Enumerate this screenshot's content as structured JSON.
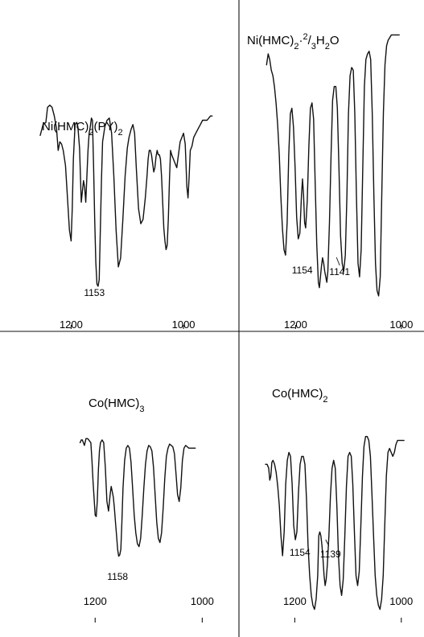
{
  "chart_data": [
    {
      "type": "line",
      "title": "Ni(HMC)2(PY)2",
      "title_parts": [
        "Ni(HMC)",
        "2",
        "(PY)",
        "2"
      ],
      "xlabel": "",
      "ylabel": "",
      "x_ticks": [
        {
          "value": 1200,
          "label": "1200"
        },
        {
          "value": 1000,
          "label": "1000"
        }
      ],
      "xlim": [
        1255,
        950
      ],
      "ylim": [
        0,
        100
      ],
      "grid": false,
      "series": [
        {
          "x": [
            1255,
            1250,
            1245,
            1242,
            1238,
            1234,
            1230,
            1226,
            1223,
            1220,
            1217,
            1214,
            1210,
            1206,
            1203,
            1200,
            1198,
            1196,
            1193,
            1190,
            1188,
            1185,
            1182,
            1180,
            1178,
            1176,
            1174,
            1172,
            1170,
            1168,
            1166,
            1164,
            1162,
            1160,
            1158,
            1156,
            1154,
            1152,
            1150,
            1148,
            1146,
            1144,
            1140,
            1136,
            1132,
            1128,
            1124,
            1120,
            1116,
            1112,
            1108,
            1104,
            1100,
            1097,
            1095,
            1093,
            1090,
            1087,
            1084,
            1080,
            1076,
            1072,
            1068,
            1065,
            1063,
            1061,
            1059,
            1057,
            1055,
            1053,
            1051,
            1049,
            1047,
            1045,
            1043,
            1041,
            1039,
            1037,
            1035,
            1033,
            1031,
            1029,
            1027,
            1025,
            1023,
            1021,
            1018,
            1015,
            1012,
            1009,
            1006,
            1003,
            1000,
            997,
            994,
            992,
            990,
            988,
            985,
            982,
            978,
            974,
            970,
            966,
            962,
            958,
            955,
            952,
            949
          ],
          "y": [
            79,
            84,
            85,
            92,
            93,
            92,
            88,
            82,
            72,
            76,
            75,
            72,
            65,
            48,
            35,
            30,
            45,
            68,
            84,
            85,
            83,
            73,
            48,
            53,
            58,
            55,
            48,
            60,
            72,
            80,
            83,
            87,
            86,
            65,
            40,
            20,
            10,
            9,
            12,
            35,
            58,
            76,
            83,
            86,
            87,
            80,
            60,
            35,
            18,
            22,
            40,
            60,
            73,
            78,
            80,
            82,
            84,
            80,
            64,
            45,
            38,
            40,
            50,
            60,
            68,
            72,
            72,
            70,
            66,
            62,
            64,
            69,
            72,
            70,
            70,
            68,
            60,
            48,
            36,
            30,
            26,
            28,
            40,
            58,
            72,
            70,
            68,
            66,
            64,
            70,
            76,
            78,
            80,
            75,
            55,
            50,
            60,
            72,
            74,
            78,
            80,
            82,
            84,
            86,
            86,
            86,
            87,
            88,
            88
          ],
          "name": ""
        }
      ],
      "annotations": [
        {
          "x": 1153,
          "text": "1153"
        }
      ]
    },
    {
      "type": "line",
      "title": "Ni(HMC)2·2/3H2O",
      "title_parts": [
        "Ni(HMC)",
        "2",
        "·",
        "2",
        "/",
        "3",
        "H",
        "2",
        "O"
      ],
      "xlabel": "",
      "ylabel": "",
      "x_ticks": [
        {
          "value": 1200,
          "label": "1200"
        },
        {
          "value": 1000,
          "label": "1000"
        }
      ],
      "xlim": [
        1260,
        980
      ],
      "ylim": [
        0,
        100
      ],
      "grid": false,
      "series": [
        {
          "x": [
            1255,
            1252,
            1249,
            1246,
            1243,
            1240,
            1237,
            1234,
            1231,
            1228,
            1225,
            1222,
            1219,
            1216,
            1213,
            1210,
            1207,
            1204,
            1201,
            1198,
            1195,
            1192,
            1189,
            1187,
            1185,
            1183,
            1181,
            1178,
            1175,
            1172,
            1169,
            1166,
            1163,
            1160,
            1157,
            1155,
            1153,
            1151,
            1149,
            1147,
            1145,
            1143,
            1141,
            1139,
            1136,
            1133,
            1130,
            1127,
            1124,
            1121,
            1118,
            1115,
            1112,
            1109,
            1106,
            1103,
            1100,
            1097,
            1094,
            1091,
            1088,
            1085,
            1082,
            1079,
            1076,
            1073,
            1070,
            1067,
            1064,
            1061,
            1058,
            1055,
            1052,
            1049,
            1046,
            1043,
            1040,
            1037,
            1034,
            1031,
            1028,
            1025,
            1022,
            1019,
            1016,
            1013,
            1010,
            1008,
            1006,
            1004
          ],
          "y": [
            88,
            92,
            90,
            86,
            84,
            80,
            74,
            66,
            55,
            40,
            28,
            20,
            18,
            30,
            55,
            70,
            72,
            65,
            50,
            32,
            24,
            26,
            40,
            46,
            40,
            30,
            28,
            38,
            58,
            72,
            74,
            68,
            45,
            22,
            8,
            6,
            10,
            14,
            17,
            15,
            12,
            10,
            8,
            12,
            30,
            55,
            75,
            80,
            80,
            72,
            50,
            25,
            15,
            12,
            18,
            40,
            70,
            84,
            87,
            86,
            70,
            40,
            15,
            10,
            20,
            50,
            80,
            90,
            92,
            93,
            90,
            70,
            40,
            15,
            5,
            3,
            10,
            40,
            70,
            88,
            95,
            97,
            98,
            99,
            99,
            99,
            99,
            99,
            99,
            99
          ],
          "name": ""
        }
      ],
      "annotations": [
        {
          "x": 1154,
          "text": "1154"
        },
        {
          "x": 1141,
          "text": "1141"
        }
      ]
    },
    {
      "type": "line",
      "title": "Co(HMC)3",
      "title_parts": [
        "Co(HMC)",
        "3"
      ],
      "xlabel": "",
      "ylabel": "",
      "x_ticks": [
        {
          "value": 1200,
          "label": "1200"
        },
        {
          "value": 1000,
          "label": "1000"
        }
      ],
      "xlim": [
        1265,
        975
      ],
      "ylim": [
        0,
        100
      ],
      "grid": false,
      "series": [
        {
          "x": [
            1228,
            1226,
            1224,
            1222,
            1220,
            1217,
            1214,
            1212,
            1210,
            1208,
            1206,
            1204,
            1202,
            1200,
            1198,
            1196,
            1194,
            1192,
            1190,
            1187,
            1184,
            1181,
            1178,
            1175,
            1172,
            1170,
            1168,
            1166,
            1164,
            1162,
            1160,
            1158,
            1156,
            1154,
            1152,
            1150,
            1148,
            1145,
            1142,
            1139,
            1136,
            1133,
            1130,
            1127,
            1124,
            1121,
            1118,
            1115,
            1112,
            1109,
            1106,
            1103,
            1100,
            1097,
            1094,
            1091,
            1088,
            1085,
            1082,
            1079,
            1076,
            1073,
            1070,
            1067,
            1064,
            1061,
            1058,
            1055,
            1052,
            1049,
            1046,
            1043,
            1040,
            1037,
            1034,
            1031,
            1028,
            1025,
            1022,
            1019,
            1016,
            1013
          ],
          "y": [
            88,
            90,
            90,
            88,
            86,
            91,
            91,
            90,
            89,
            88,
            75,
            60,
            48,
            35,
            34,
            45,
            68,
            82,
            88,
            90,
            88,
            70,
            45,
            38,
            50,
            56,
            52,
            48,
            40,
            30,
            20,
            10,
            5,
            6,
            10,
            30,
            55,
            75,
            84,
            86,
            84,
            74,
            55,
            35,
            22,
            14,
            12,
            18,
            35,
            55,
            72,
            82,
            86,
            85,
            82,
            70,
            50,
            30,
            18,
            15,
            22,
            40,
            62,
            78,
            84,
            87,
            86,
            85,
            80,
            65,
            50,
            45,
            55,
            75,
            84,
            86,
            85,
            84,
            84,
            84,
            84,
            84
          ],
          "name": ""
        }
      ],
      "annotations": [
        {
          "x": 1158,
          "text": "1158"
        }
      ]
    },
    {
      "type": "line",
      "title": "Co(HMC)2",
      "title_parts": [
        "Co(HMC)",
        "2"
      ],
      "xlabel": "",
      "ylabel": "",
      "x_ticks": [
        {
          "value": 1200,
          "label": "1200"
        },
        {
          "value": 1000,
          "label": "1000"
        }
      ],
      "xlim": [
        1255,
        980
      ],
      "ylim": [
        0,
        100
      ],
      "grid": false,
      "series": [
        {
          "x": [
            1255,
            1252,
            1249,
            1247,
            1245,
            1243,
            1241,
            1238,
            1235,
            1232,
            1229,
            1226,
            1223,
            1220,
            1217,
            1214,
            1211,
            1208,
            1205,
            1202,
            1199,
            1196,
            1193,
            1190,
            1187,
            1184,
            1181,
            1178,
            1175,
            1172,
            1169,
            1166,
            1163,
            1160,
            1157,
            1155,
            1153,
            1151,
            1149,
            1147,
            1145,
            1143,
            1141,
            1139,
            1136,
            1133,
            1130,
            1127,
            1124,
            1121,
            1118,
            1115,
            1112,
            1109,
            1106,
            1103,
            1100,
            1097,
            1094,
            1091,
            1088,
            1085,
            1082,
            1079,
            1076,
            1073,
            1070,
            1067,
            1064,
            1061,
            1058,
            1055,
            1052,
            1049,
            1046,
            1043,
            1040,
            1037,
            1034,
            1031,
            1028,
            1025,
            1022,
            1019,
            1016,
            1013,
            1010,
            1007,
            1004,
            1001,
            998,
            995
          ],
          "y": [
            76,
            76,
            74,
            68,
            70,
            77,
            78,
            76,
            72,
            65,
            55,
            40,
            30,
            42,
            66,
            78,
            82,
            80,
            66,
            45,
            38,
            42,
            62,
            76,
            80,
            80,
            76,
            58,
            35,
            20,
            10,
            5,
            3,
            8,
            20,
            40,
            42,
            40,
            35,
            28,
            20,
            15,
            18,
            25,
            40,
            60,
            74,
            78,
            74,
            55,
            30,
            15,
            10,
            18,
            40,
            65,
            80,
            82,
            80,
            66,
            42,
            20,
            15,
            22,
            45,
            70,
            85,
            90,
            90,
            88,
            80,
            60,
            40,
            20,
            10,
            5,
            3,
            8,
            20,
            45,
            70,
            82,
            84,
            82,
            80,
            82,
            86,
            88,
            88,
            88,
            88,
            88
          ],
          "name": ""
        }
      ],
      "annotations": [
        {
          "x": 1154,
          "text": "1154"
        },
        {
          "x": 1139,
          "text": "1139"
        }
      ]
    }
  ]
}
